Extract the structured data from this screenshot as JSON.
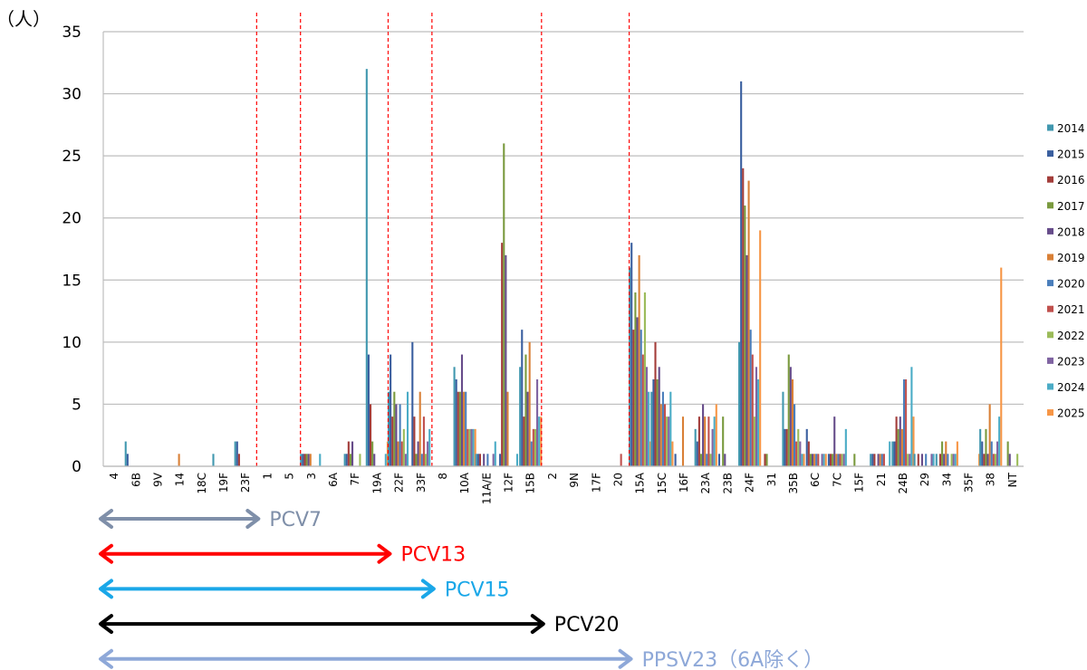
{
  "chart_data": {
    "type": "bar",
    "ylabel": "（人）",
    "ylim": [
      0,
      35
    ],
    "yticks": [
      0,
      5,
      10,
      15,
      20,
      25,
      30,
      35
    ],
    "grid": true,
    "legend_position": "right",
    "categories": [
      "4",
      "6B",
      "9V",
      "14",
      "18C",
      "19F",
      "23F",
      "1",
      "5",
      "3",
      "6A",
      "7F",
      "19A",
      "22F",
      "33F",
      "8",
      "10A",
      "11A/E",
      "12F",
      "15B",
      "2",
      "9N",
      "17F",
      "20",
      "15A",
      "15C",
      "16F",
      "23A",
      "23B",
      "24F",
      "31",
      "35B",
      "6C",
      "7C",
      "15F",
      "21",
      "24B",
      "29",
      "34",
      "35F",
      "38",
      "NT"
    ],
    "series": [
      {
        "name": "2014",
        "color": "#4198af",
        "values": [
          0,
          2,
          0,
          0,
          0,
          1,
          2,
          0,
          0,
          1,
          0,
          1,
          32,
          6,
          0,
          0,
          8,
          1,
          0,
          8,
          0,
          0,
          0,
          0,
          16,
          6,
          0,
          3,
          0,
          10,
          0,
          6,
          0,
          0,
          0,
          1,
          2,
          1,
          1,
          0,
          3,
          0
        ]
      },
      {
        "name": "2015",
        "color": "#3a5f9f",
        "values": [
          0,
          1,
          0,
          0,
          0,
          0,
          2,
          0,
          0,
          1,
          0,
          1,
          9,
          9,
          10,
          0,
          7,
          1,
          1,
          11,
          0,
          0,
          0,
          0,
          18,
          7,
          1,
          2,
          1,
          31,
          0,
          3,
          3,
          1,
          0,
          1,
          2,
          0,
          0,
          0,
          2,
          0
        ]
      },
      {
        "name": "2016",
        "color": "#a33d3a",
        "values": [
          0,
          0,
          0,
          0,
          0,
          0,
          1,
          0,
          0,
          1,
          0,
          2,
          5,
          4,
          4,
          0,
          6,
          1,
          18,
          4,
          0,
          0,
          0,
          0,
          11,
          10,
          0,
          4,
          0,
          24,
          1,
          3,
          2,
          1,
          0,
          1,
          4,
          1,
          1,
          0,
          1,
          0
        ]
      },
      {
        "name": "2017",
        "color": "#7a9a3e",
        "values": [
          0,
          0,
          0,
          0,
          0,
          0,
          0,
          0,
          0,
          1,
          0,
          1,
          2,
          6,
          1,
          0,
          6,
          0,
          26,
          9,
          0,
          0,
          0,
          0,
          14,
          7,
          0,
          1,
          4,
          21,
          1,
          9,
          1,
          1,
          1,
          0,
          3,
          0,
          2,
          0,
          3,
          2
        ]
      },
      {
        "name": "2018",
        "color": "#664c8a",
        "values": [
          0,
          0,
          0,
          0,
          0,
          0,
          0,
          0,
          0,
          1,
          0,
          2,
          1,
          5,
          2,
          0,
          9,
          1,
          17,
          6,
          0,
          0,
          0,
          0,
          12,
          8,
          0,
          5,
          1,
          17,
          0,
          8,
          1,
          4,
          0,
          1,
          4,
          1,
          1,
          0,
          1,
          1
        ]
      },
      {
        "name": "2019",
        "color": "#d98037",
        "values": [
          0,
          0,
          0,
          1,
          0,
          0,
          0,
          0,
          0,
          1,
          0,
          0,
          0,
          2,
          6,
          0,
          6,
          0,
          6,
          10,
          0,
          0,
          0,
          0,
          17,
          5,
          4,
          4,
          0,
          23,
          0,
          7,
          1,
          1,
          0,
          1,
          3,
          0,
          2,
          0,
          5,
          0
        ]
      },
      {
        "name": "2020",
        "color": "#4a7ebb",
        "values": [
          0,
          0,
          0,
          0,
          0,
          0,
          0,
          0,
          0,
          0,
          0,
          0,
          0,
          5,
          1,
          0,
          6,
          1,
          0,
          2,
          0,
          0,
          0,
          0,
          11,
          6,
          0,
          1,
          0,
          11,
          0,
          5,
          1,
          1,
          0,
          1,
          7,
          1,
          1,
          0,
          2,
          0
        ]
      },
      {
        "name": "2021",
        "color": "#c0504d",
        "values": [
          0,
          0,
          0,
          0,
          0,
          0,
          0,
          0,
          0,
          0,
          0,
          0,
          0,
          2,
          4,
          0,
          3,
          0,
          0,
          3,
          0,
          0,
          0,
          1,
          9,
          5,
          0,
          4,
          0,
          9,
          0,
          2,
          1,
          1,
          0,
          1,
          7,
          0,
          0,
          0,
          1,
          0
        ]
      },
      {
        "name": "2022",
        "color": "#9bbb59",
        "values": [
          0,
          0,
          0,
          0,
          0,
          0,
          0,
          0,
          0,
          0,
          0,
          1,
          0,
          3,
          1,
          0,
          3,
          0,
          0,
          3,
          0,
          0,
          0,
          0,
          14,
          4,
          0,
          1,
          0,
          4,
          0,
          3,
          0,
          1,
          0,
          0,
          1,
          0,
          1,
          0,
          1,
          1
        ]
      },
      {
        "name": "2023",
        "color": "#8064a2",
        "values": [
          0,
          0,
          0,
          0,
          0,
          0,
          0,
          0,
          0,
          0,
          0,
          0,
          0,
          1,
          2,
          0,
          3,
          1,
          0,
          7,
          0,
          0,
          0,
          0,
          8,
          4,
          0,
          3,
          0,
          8,
          0,
          2,
          1,
          1,
          0,
          0,
          1,
          1,
          1,
          0,
          2,
          0
        ]
      },
      {
        "name": "2024",
        "color": "#4bacc6",
        "values": [
          0,
          0,
          0,
          0,
          0,
          0,
          0,
          0,
          0,
          1,
          0,
          0,
          1,
          6,
          3,
          0,
          3,
          2,
          1,
          4,
          0,
          0,
          0,
          0,
          6,
          6,
          0,
          4,
          0,
          7,
          0,
          1,
          1,
          3,
          0,
          2,
          8,
          1,
          1,
          0,
          4,
          0
        ]
      },
      {
        "name": "2025",
        "color": "#f79646",
        "values": [
          0,
          0,
          0,
          0,
          0,
          0,
          0,
          0,
          0,
          0,
          0,
          0,
          2,
          0,
          0,
          0,
          3,
          0,
          0,
          4,
          0,
          0,
          0,
          0,
          2,
          2,
          0,
          5,
          0,
          19,
          0,
          1,
          1,
          0,
          0,
          0,
          4,
          0,
          2,
          1,
          16,
          0
        ]
      }
    ],
    "dividers_after": [
      "23F",
      "5",
      "19A",
      "33F",
      "15B",
      "20"
    ],
    "vaccine_ranges": [
      {
        "label": "PCV7",
        "color": "#7f8fa9",
        "end_after": "23F"
      },
      {
        "label": "PCV13",
        "color": "#ff0000",
        "end_after": "19A"
      },
      {
        "label": "PCV15",
        "color": "#1aa7e8",
        "end_after": "33F"
      },
      {
        "label": "PCV20",
        "color": "#000000",
        "end_after": "15B"
      },
      {
        "label": "PPSV23（6A除く）",
        "color": "#8ea8d8",
        "end_after": "20"
      }
    ]
  }
}
